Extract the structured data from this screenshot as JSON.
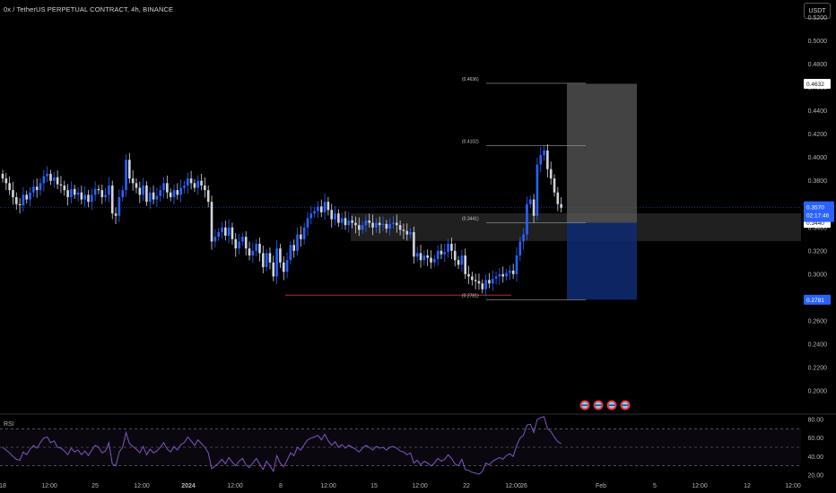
{
  "header": {
    "title": "0x / TetherUS PERPETUAL CONTRACT, 4h, BINANCE",
    "currency": "USDT"
  },
  "colors": {
    "background": "#000000",
    "bull": "#2962ff",
    "bear": "#d1d4dc",
    "rsi": "#7e57c2",
    "profit_zone": "#5a5a5a",
    "loss_zone": "#0e2a6e",
    "support_zone": "#3a3a3a",
    "low_marker": "#c62828",
    "current_price_tag": "#2962ff"
  },
  "chart_data": {
    "type": "candlestick",
    "symbol": "0x / TetherUS PERPETUAL CONTRACT",
    "interval": "4h",
    "exchange": "BINANCE",
    "ylim": [
      0.18,
      0.535
    ],
    "y_ticks": [
      "0.5200",
      "0.5000",
      "0.4800",
      "0.4600",
      "0.4400",
      "0.4200",
      "0.4000",
      "0.3800",
      "0.3600",
      "0.3400",
      "0.3200",
      "0.3000",
      "0.2800",
      "0.2600",
      "0.2400",
      "0.2200",
      "0.2000"
    ],
    "x_ticks": [
      "18",
      "12:00",
      "25",
      "12:00",
      "2024",
      "12:00",
      "8",
      "12:00",
      "15",
      "12:00",
      "22",
      "12:00",
      "26",
      "Feb",
      "5",
      "12:00",
      "12",
      "12:00"
    ],
    "candles_close": [
      0.382,
      0.378,
      0.372,
      0.366,
      0.36,
      0.359,
      0.368,
      0.364,
      0.37,
      0.375,
      0.372,
      0.378,
      0.384,
      0.386,
      0.38,
      0.383,
      0.377,
      0.376,
      0.372,
      0.366,
      0.373,
      0.368,
      0.37,
      0.364,
      0.368,
      0.362,
      0.368,
      0.373,
      0.372,
      0.366,
      0.368,
      0.376,
      0.352,
      0.35,
      0.366,
      0.372,
      0.398,
      0.382,
      0.378,
      0.374,
      0.368,
      0.376,
      0.362,
      0.37,
      0.364,
      0.367,
      0.372,
      0.378,
      0.37,
      0.366,
      0.372,
      0.368,
      0.374,
      0.376,
      0.382,
      0.378,
      0.374,
      0.38,
      0.376,
      0.372,
      0.362,
      0.328,
      0.332,
      0.336,
      0.34,
      0.333,
      0.34,
      0.33,
      0.322,
      0.328,
      0.332,
      0.322,
      0.316,
      0.32,
      0.326,
      0.318,
      0.306,
      0.318,
      0.31,
      0.298,
      0.322,
      0.31,
      0.302,
      0.312,
      0.325,
      0.32,
      0.334,
      0.33,
      0.34,
      0.348,
      0.352,
      0.354,
      0.358,
      0.353,
      0.362,
      0.355,
      0.347,
      0.352,
      0.344,
      0.348,
      0.342,
      0.346,
      0.344,
      0.342,
      0.338,
      0.342,
      0.346,
      0.344,
      0.34,
      0.344,
      0.342,
      0.343,
      0.339,
      0.343,
      0.344,
      0.342,
      0.338,
      0.337,
      0.334,
      0.336,
      0.315,
      0.318,
      0.312,
      0.316,
      0.314,
      0.31,
      0.313,
      0.32,
      0.317,
      0.319,
      0.326,
      0.32,
      0.312,
      0.308,
      0.316,
      0.3,
      0.298,
      0.295,
      0.294,
      0.292,
      0.287,
      0.295,
      0.292,
      0.296,
      0.298,
      0.3,
      0.298,
      0.301,
      0.303,
      0.3,
      0.316,
      0.328,
      0.334,
      0.36,
      0.364,
      0.35,
      0.394,
      0.402,
      0.406,
      0.39,
      0.382,
      0.37,
      0.36,
      0.357
    ],
    "current_price": "0.3570",
    "countdown": "02:17:46",
    "price_labels": {
      "target": "0.4632",
      "stop": "0.2781",
      "entry": "0.3440"
    },
    "fib_levels": [
      {
        "label": "(0.4636)",
        "value": 0.4636
      },
      {
        "label": "(0.4102)",
        "value": 0.4102
      },
      {
        "label": "(0.3441)",
        "value": 0.3441
      },
      {
        "label": "(0.2781)",
        "value": 0.2781
      }
    ],
    "long_position": {
      "entry": 0.344,
      "target": 0.4632,
      "stop": 0.2781
    },
    "support_zone": [
      0.3284,
      0.3522
    ],
    "cycle_low": 0.282,
    "rsi": {
      "label": "RSI",
      "ylim": [
        20,
        80
      ],
      "y_ticks": [
        "80.00",
        "60.00",
        "40.00",
        "20.00"
      ],
      "bands": [
        70,
        50,
        30
      ],
      "values": [
        50,
        47,
        44,
        40,
        37,
        36,
        45,
        42,
        48,
        52,
        49,
        55,
        60,
        61,
        55,
        57,
        50,
        49,
        46,
        42,
        49,
        45,
        47,
        42,
        46,
        41,
        47,
        52,
        50,
        44,
        46,
        55,
        32,
        30,
        45,
        50,
        66,
        54,
        51,
        48,
        44,
        51,
        42,
        48,
        44,
        46,
        50,
        55,
        48,
        45,
        51,
        47,
        53,
        55,
        61,
        57,
        52,
        58,
        54,
        50,
        44,
        27,
        30,
        33,
        37,
        32,
        39,
        34,
        30,
        35,
        38,
        31,
        28,
        33,
        38,
        32,
        26,
        35,
        30,
        24,
        41,
        33,
        29,
        36,
        44,
        41,
        50,
        47,
        53,
        58,
        60,
        61,
        63,
        58,
        64,
        57,
        52,
        56,
        50,
        53,
        49,
        52,
        50,
        48,
        45,
        49,
        52,
        50,
        47,
        51,
        49,
        50,
        47,
        50,
        51,
        49,
        46,
        45,
        42,
        44,
        33,
        36,
        31,
        35,
        33,
        30,
        33,
        38,
        35,
        37,
        42,
        38,
        32,
        30,
        37,
        26,
        25,
        23,
        22,
        21,
        24,
        33,
        31,
        35,
        37,
        39,
        37,
        41,
        43,
        40,
        52,
        60,
        63,
        74,
        75,
        66,
        80,
        82,
        83,
        70,
        67,
        61,
        56,
        54
      ]
    },
    "event_badge_count": 4
  }
}
